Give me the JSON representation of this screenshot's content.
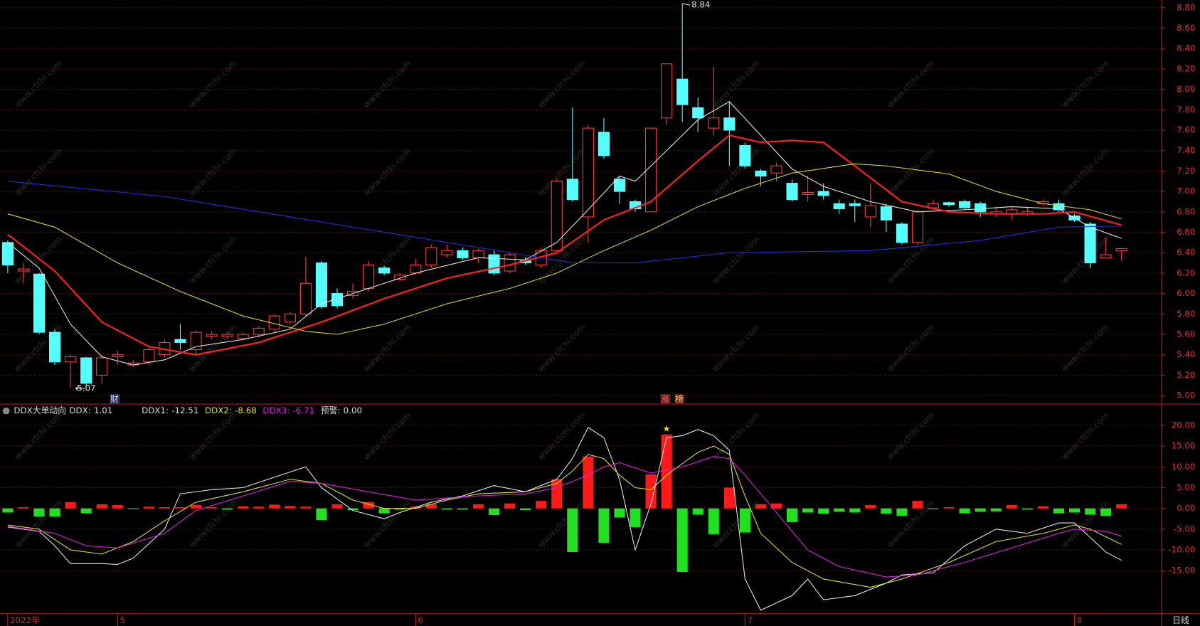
{
  "chart_data": [
    {
      "type": "candlestick",
      "open": [
        6.5,
        6.22,
        6.19,
        5.62,
        5.33,
        5.37,
        5.2,
        5.38,
        5.3,
        5.33,
        5.4,
        5.55,
        5.45,
        5.58,
        5.58,
        5.56,
        5.6,
        5.65,
        5.72,
        5.8,
        6.3,
        6.0,
        5.98,
        6.05,
        6.25,
        6.14,
        6.2,
        6.28,
        6.38,
        6.42,
        6.35,
        6.38,
        6.22,
        6.32,
        6.28,
        6.42,
        7.12,
        6.75,
        7.58,
        7.12,
        6.9,
        6.8,
        7.72,
        8.1,
        7.82,
        7.62,
        7.72,
        7.45,
        7.2,
        7.18,
        7.08,
        6.97,
        7.0,
        6.88,
        6.88,
        6.75,
        6.85,
        6.68,
        6.5,
        6.84,
        6.89,
        6.9,
        6.88,
        6.78,
        6.78,
        6.78,
        6.88,
        6.88,
        6.76,
        6.68,
        6.35,
        6.42
      ],
      "high": [
        6.52,
        6.3,
        6.2,
        5.65,
        5.4,
        5.38,
        5.4,
        5.44,
        5.35,
        5.48,
        5.55,
        5.7,
        5.64,
        5.63,
        5.62,
        5.62,
        5.68,
        5.8,
        5.82,
        6.36,
        6.32,
        6.05,
        6.1,
        6.32,
        6.27,
        6.2,
        6.34,
        6.48,
        6.48,
        6.45,
        6.44,
        6.42,
        6.4,
        6.36,
        6.45,
        7.12,
        7.82,
        7.65,
        7.72,
        7.15,
        6.92,
        7.62,
        8.25,
        8.84,
        7.92,
        8.22,
        7.88,
        7.48,
        7.22,
        7.28,
        7.12,
        7.15,
        7.08,
        6.92,
        6.92,
        7.08,
        6.88,
        6.7,
        6.82,
        6.92,
        6.9,
        6.92,
        6.9,
        6.85,
        6.85,
        6.84,
        6.92,
        6.92,
        6.78,
        6.7,
        6.55,
        6.44
      ],
      "low": [
        6.2,
        6.1,
        5.6,
        5.3,
        5.08,
        5.07,
        5.12,
        5.3,
        5.28,
        5.3,
        5.37,
        5.45,
        5.4,
        5.55,
        5.55,
        5.54,
        5.57,
        5.62,
        5.7,
        5.78,
        5.85,
        5.85,
        5.95,
        6.02,
        6.18,
        6.12,
        6.18,
        6.25,
        6.35,
        6.33,
        6.3,
        6.18,
        6.2,
        6.28,
        6.25,
        6.4,
        6.9,
        6.5,
        7.32,
        6.88,
        6.8,
        6.8,
        7.65,
        7.68,
        7.58,
        7.55,
        7.25,
        7.22,
        7.05,
        7.1,
        6.9,
        6.9,
        6.92,
        6.78,
        6.7,
        6.65,
        6.6,
        6.48,
        6.48,
        6.82,
        6.85,
        6.82,
        6.75,
        6.75,
        6.72,
        6.76,
        6.86,
        6.8,
        6.7,
        6.25,
        6.35,
        6.32
      ],
      "close": [
        6.28,
        6.24,
        5.62,
        5.33,
        5.38,
        5.12,
        5.37,
        5.4,
        5.32,
        5.45,
        5.52,
        5.52,
        5.62,
        5.6,
        5.6,
        5.6,
        5.66,
        5.78,
        5.8,
        6.1,
        5.87,
        5.88,
        6.02,
        6.28,
        6.2,
        6.18,
        6.28,
        6.45,
        6.42,
        6.35,
        6.42,
        6.2,
        6.38,
        6.3,
        6.42,
        7.1,
        6.92,
        7.62,
        7.35,
        7.0,
        6.83,
        7.62,
        8.25,
        7.85,
        7.72,
        7.72,
        7.6,
        7.25,
        7.15,
        7.25,
        6.92,
        6.99,
        6.96,
        6.83,
        6.86,
        6.86,
        6.72,
        6.5,
        6.8,
        6.88,
        6.87,
        6.84,
        6.8,
        6.8,
        6.82,
        6.8,
        6.9,
        6.82,
        6.72,
        6.3,
        6.38,
        6.44
      ],
      "up_color": "#ff3c3c",
      "down_color": "#54ffff",
      "lines": [
        {
          "color": "#e8e8e8",
          "x": [
            0,
            2,
            4,
            6,
            8,
            10,
            12,
            15,
            18,
            20,
            23,
            26,
            30,
            33,
            35,
            37,
            39,
            40,
            42,
            44,
            46,
            48,
            50,
            52,
            55,
            58,
            61,
            64,
            67,
            69,
            71
          ],
          "values": [
            6.5,
            6.25,
            5.7,
            5.38,
            5.3,
            5.35,
            5.48,
            5.55,
            5.65,
            5.9,
            6.05,
            6.2,
            6.35,
            6.33,
            6.5,
            6.82,
            7.15,
            7.1,
            7.4,
            7.7,
            7.88,
            7.55,
            7.22,
            7.05,
            6.9,
            6.8,
            6.82,
            6.85,
            6.83,
            6.65,
            6.54
          ]
        },
        {
          "color": "#ff2020",
          "x": [
            0,
            3,
            6,
            9,
            12,
            16,
            20,
            24,
            28,
            32,
            35,
            38,
            41,
            44,
            46,
            48,
            50,
            52,
            54,
            57,
            60,
            63,
            66,
            68,
            71
          ],
          "values": [
            6.58,
            6.22,
            5.72,
            5.48,
            5.4,
            5.52,
            5.72,
            5.95,
            6.15,
            6.28,
            6.4,
            6.72,
            6.9,
            7.3,
            7.55,
            7.48,
            7.5,
            7.48,
            7.25,
            6.9,
            6.8,
            6.78,
            6.78,
            6.8,
            6.67
          ]
        },
        {
          "color": "#d8d820",
          "x": [
            0,
            3,
            7,
            11,
            15,
            19,
            21,
            24,
            28,
            32,
            35,
            38,
            41,
            44,
            47,
            50,
            54,
            56,
            60,
            63,
            66,
            69,
            71
          ],
          "values": [
            6.78,
            6.65,
            6.3,
            6.02,
            5.78,
            5.63,
            5.6,
            5.7,
            5.9,
            6.05,
            6.2,
            6.42,
            6.62,
            6.85,
            7.03,
            7.18,
            7.27,
            7.25,
            7.17,
            7.0,
            6.88,
            6.82,
            6.73
          ]
        },
        {
          "color": "#2030e0",
          "x": [
            0,
            10,
            20,
            30,
            36,
            40,
            46,
            55,
            62,
            67,
            71
          ],
          "values": [
            7.1,
            6.95,
            6.7,
            6.45,
            6.3,
            6.3,
            6.4,
            6.42,
            6.52,
            6.65,
            6.66
          ]
        }
      ],
      "xlim": [
        -0.49,
        73.56
      ],
      "ylim": [
        4.917,
        8.875
      ],
      "yticks": [
        {
          "value": 5.0,
          "label": "5.00"
        },
        {
          "value": 5.2,
          "label": "5.20"
        },
        {
          "value": 5.4,
          "label": "5.40"
        },
        {
          "value": 5.6,
          "label": "5.60"
        },
        {
          "value": 5.8,
          "label": "5.80"
        },
        {
          "value": 6.0,
          "label": "6.00"
        },
        {
          "value": 6.2,
          "label": "6.20"
        },
        {
          "value": 6.4,
          "label": "6.40"
        },
        {
          "value": 6.6,
          "label": "6.60"
        },
        {
          "value": 6.8,
          "label": "6.80"
        },
        {
          "value": 7.0,
          "label": "7.00"
        },
        {
          "value": 7.2,
          "label": "7.20"
        },
        {
          "value": 7.4,
          "label": "7.40"
        },
        {
          "value": 7.6,
          "label": "7.60"
        },
        {
          "value": 7.8,
          "label": "7.80"
        },
        {
          "value": 8.0,
          "label": "8.00"
        },
        {
          "value": 8.2,
          "label": "8.20"
        },
        {
          "value": 8.4,
          "label": "8.40"
        },
        {
          "value": 8.6,
          "label": "8.60"
        },
        {
          "value": 8.8,
          "label": "8.80"
        }
      ],
      "grid": true,
      "markers": [
        "财",
        "涨",
        "榜"
      ],
      "watermark": "www.cfchi.com"
    },
    {
      "type": "bar",
      "title": "DDX大单动向",
      "series": [
        {
          "name": "DDX:",
          "color": "#e8e8e8",
          "up_color": "#ff1a1a",
          "down_color": "#20e020",
          "values": [
            -1.0,
            0.3,
            -2.0,
            -2.0,
            1.5,
            -1.2,
            1.0,
            0.8,
            -0.2,
            0.4,
            0.3,
            0.3,
            0.8,
            0.3,
            -0.3,
            0.5,
            0.4,
            0.9,
            0.6,
            0.4,
            -2.8,
            1.0,
            -0.4,
            1.5,
            -1.2,
            -0.3,
            0.4,
            1.0,
            -0.3,
            -0.3,
            1.0,
            -1.6,
            1.2,
            -0.4,
            1.8,
            7.0,
            -10.5,
            12.5,
            -8.3,
            -2.2,
            -4.5,
            8.2,
            17.8,
            -15.3,
            -1.5,
            -6.2,
            5.0,
            -5.8,
            1.0,
            1.2,
            -3.3,
            -1.0,
            -1.3,
            -0.8,
            -1.0,
            0.8,
            -1.3,
            -1.8,
            1.8,
            -0.2,
            0.3,
            -1.2,
            -0.8,
            -0.7,
            0.8,
            -0.3,
            0.5,
            -1.2,
            -1.0,
            -1.5,
            -1.8,
            1.01
          ]
        },
        {
          "name": "DDX1:",
          "color": "#e8e8e8",
          "x": [
            0,
            2,
            3,
            4,
            6,
            7,
            8,
            10,
            11,
            13,
            15,
            17,
            19,
            20,
            22,
            24,
            25,
            27,
            29,
            31,
            33,
            35,
            36,
            37,
            38,
            39,
            40,
            41,
            42,
            43,
            44,
            45,
            46,
            47,
            48,
            50,
            51,
            52,
            54,
            56,
            57,
            59,
            61,
            63,
            64,
            65,
            67,
            68,
            69,
            70,
            71
          ],
          "values": [
            -4.5,
            -5.5,
            -9,
            -13.3,
            -13.3,
            -13.5,
            -12,
            -5,
            3.5,
            4.5,
            5,
            7.5,
            10,
            5,
            -0.5,
            -2.5,
            -1,
            1.5,
            3,
            5.5,
            4,
            7,
            12,
            19.5,
            17,
            7,
            -10,
            1,
            17,
            17.5,
            19,
            17.5,
            14,
            -17,
            -24.5,
            -21,
            -17,
            -22,
            -21,
            -18,
            -16,
            -15.5,
            -9,
            -5,
            -5.5,
            -6,
            -3.5,
            -3.5,
            -7,
            -10.5,
            -12.51
          ]
        },
        {
          "name": "DDX2:",
          "color": "#e0e020",
          "x": [
            0,
            2,
            4,
            6,
            8,
            10,
            12,
            15,
            18,
            20,
            22,
            24,
            26,
            28,
            30,
            33,
            35,
            36,
            37,
            38,
            39,
            40,
            41,
            42,
            44,
            45,
            46,
            47,
            48,
            50,
            52,
            55,
            57,
            60,
            63,
            66,
            68,
            69,
            71
          ],
          "values": [
            -4,
            -5,
            -10,
            -11,
            -8,
            -3,
            1.5,
            4,
            7,
            6,
            2,
            0,
            0,
            2,
            3.5,
            4,
            6,
            9,
            13,
            12,
            8,
            5,
            4.5,
            8,
            13.5,
            15,
            13,
            3,
            -6,
            -13,
            -17,
            -19,
            -17,
            -13,
            -8,
            -6,
            -4,
            -5,
            -8.68
          ]
        },
        {
          "name": "DDX3:",
          "color": "#e020e0",
          "x": [
            0,
            3,
            5,
            7,
            10,
            12,
            15,
            18,
            20,
            23,
            26,
            30,
            33,
            35,
            37,
            38,
            39,
            41,
            43,
            45,
            46,
            47,
            49,
            51,
            53,
            56,
            58,
            61,
            64,
            67,
            68,
            70,
            71
          ],
          "values": [
            -4.3,
            -6,
            -9,
            -9.5,
            -6,
            -0.5,
            3,
            6.5,
            6,
            4,
            2,
            3,
            3.5,
            5,
            8,
            10,
            11,
            8.5,
            10,
            12.5,
            12,
            8,
            -1,
            -10,
            -14,
            -16.5,
            -16,
            -13,
            -9.5,
            -6,
            -5,
            -5.5,
            -6.71
          ]
        }
      ],
      "warning": {
        "name": "预警:",
        "value": 0,
        "label": "0.00"
      },
      "signal": "★",
      "xlim": [
        -0.49,
        73.56
      ],
      "ylim": [
        -25,
        21.43
      ],
      "xticks": [
        {
          "value": 0,
          "label": "2022年"
        },
        {
          "value": 7,
          "label": "5"
        },
        {
          "value": 26,
          "label": "6"
        },
        {
          "value": 47,
          "label": "7"
        },
        {
          "value": 68,
          "label": "8"
        }
      ],
      "yticks": [
        {
          "value": 20,
          "label": "20.00"
        },
        {
          "value": 15,
          "label": "15.00"
        },
        {
          "value": 10,
          "label": "10.00"
        },
        {
          "value": 5,
          "label": "5.00"
        },
        {
          "value": 0,
          "label": "0.00"
        },
        {
          "value": -5,
          "label": "-5.00"
        },
        {
          "value": -10,
          "label": "-10.00"
        },
        {
          "value": -15,
          "label": "-15.00"
        }
      ],
      "grid": true,
      "period": "日线"
    }
  ]
}
